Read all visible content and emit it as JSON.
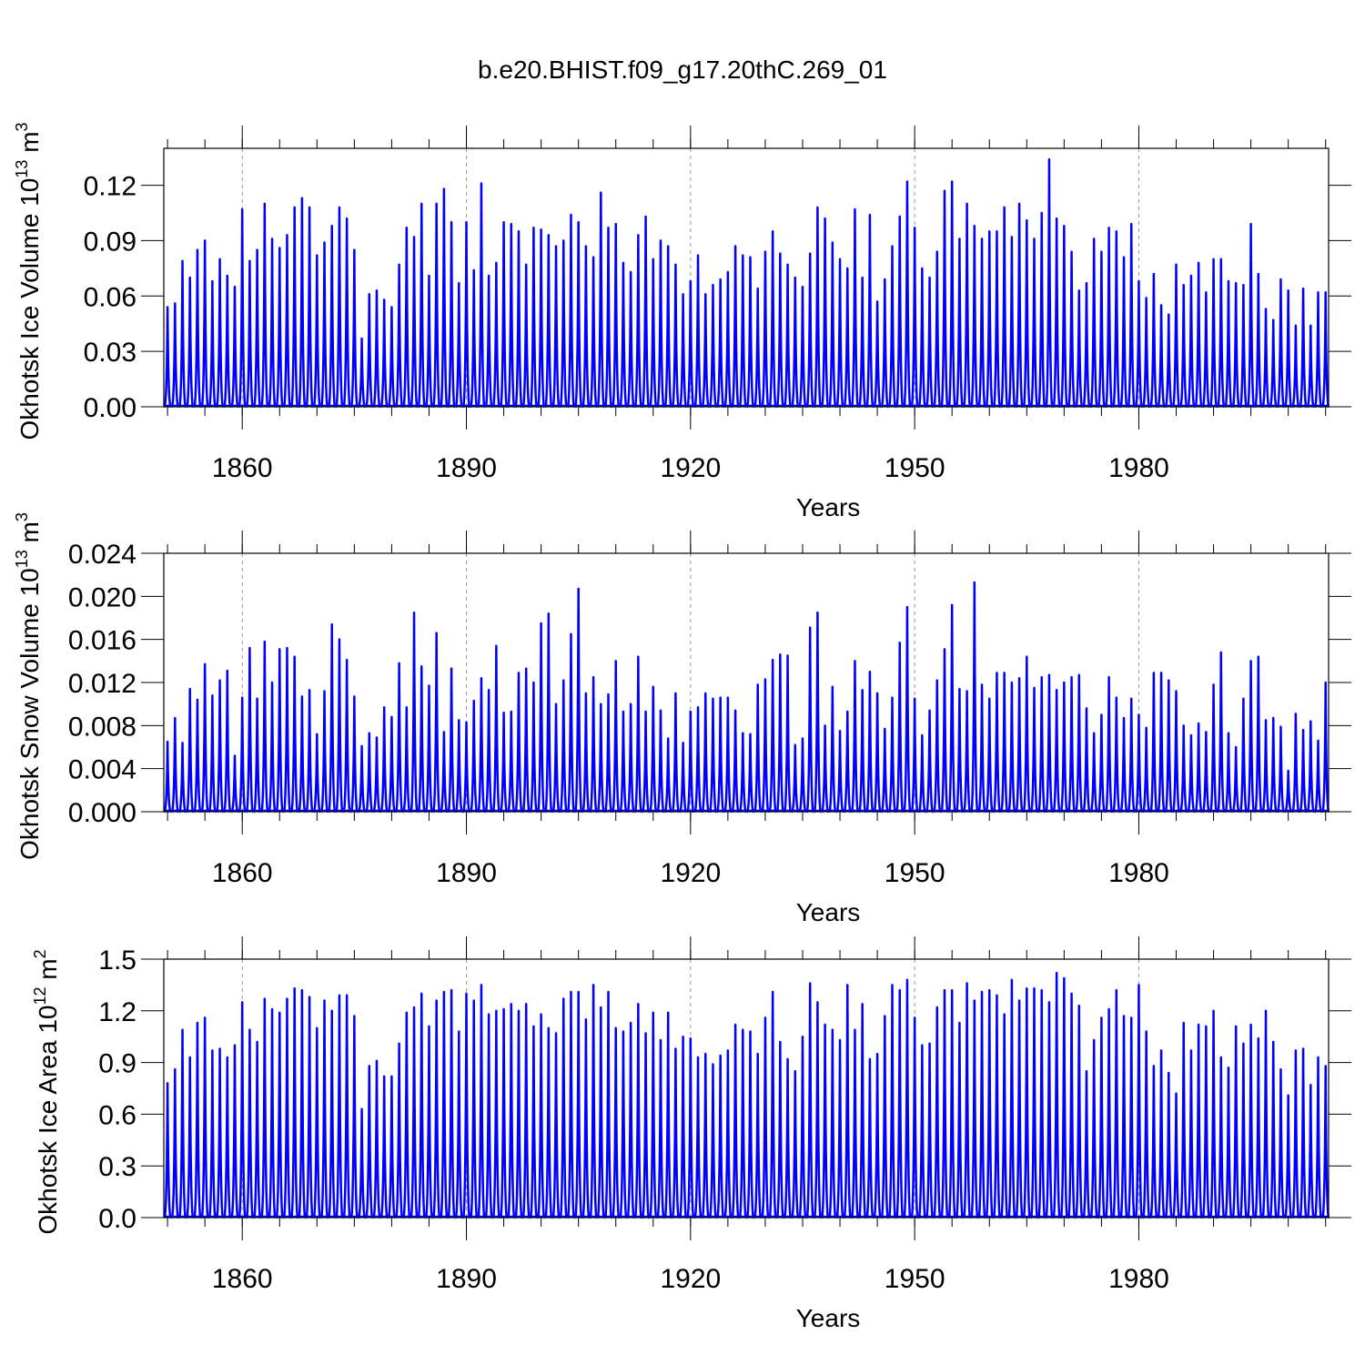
{
  "title": "b.e20.BHIST.f09_g17.20thC.269_01",
  "chart_data": [
    {
      "type": "spike",
      "ylabel": [
        "Okhotsk Ice Volume 10",
        "13",
        " m",
        "3"
      ],
      "xlabel": "Years",
      "color": "#0000ff",
      "grid": true,
      "xlim": [
        1849.5,
        2005.4
      ],
      "xticks": [
        1860,
        1890,
        1920,
        1950,
        1980
      ],
      "xminorticks": [
        1850,
        1855,
        1860,
        1865,
        1870,
        1875,
        1880,
        1885,
        1890,
        1895,
        1900,
        1905,
        1910,
        1915,
        1920,
        1925,
        1930,
        1935,
        1940,
        1945,
        1950,
        1955,
        1960,
        1965,
        1970,
        1975,
        1980,
        1985,
        1990,
        1995,
        2000,
        2005
      ],
      "ylim": [
        0,
        0.14
      ],
      "yticks": [
        {
          "value": 0,
          "label": "0.00"
        },
        0.03,
        0.06,
        0.09,
        0.12
      ],
      "x": [
        1850,
        1851,
        1852,
        1853,
        1854,
        1855,
        1856,
        1857,
        1858,
        1859,
        1860,
        1861,
        1862,
        1863,
        1864,
        1865,
        1866,
        1867,
        1868,
        1869,
        1870,
        1871,
        1872,
        1873,
        1874,
        1875,
        1876,
        1877,
        1878,
        1879,
        1880,
        1881,
        1882,
        1883,
        1884,
        1885,
        1886,
        1887,
        1888,
        1889,
        1890,
        1891,
        1892,
        1893,
        1894,
        1895,
        1896,
        1897,
        1898,
        1899,
        1900,
        1901,
        1902,
        1903,
        1904,
        1905,
        1906,
        1907,
        1908,
        1909,
        1910,
        1911,
        1912,
        1913,
        1914,
        1915,
        1916,
        1917,
        1918,
        1919,
        1920,
        1921,
        1922,
        1923,
        1924,
        1925,
        1926,
        1927,
        1928,
        1929,
        1930,
        1931,
        1932,
        1933,
        1934,
        1935,
        1936,
        1937,
        1938,
        1939,
        1940,
        1941,
        1942,
        1943,
        1944,
        1945,
        1946,
        1947,
        1948,
        1949,
        1950,
        1951,
        1952,
        1953,
        1954,
        1955,
        1956,
        1957,
        1958,
        1959,
        1960,
        1961,
        1962,
        1963,
        1964,
        1965,
        1966,
        1967,
        1968,
        1969,
        1970,
        1971,
        1972,
        1973,
        1974,
        1975,
        1976,
        1977,
        1978,
        1979,
        1980,
        1981,
        1982,
        1983,
        1984,
        1985,
        1986,
        1987,
        1988,
        1989,
        1990,
        1991,
        1992,
        1993,
        1994,
        1995,
        1996,
        1997,
        1998,
        1999,
        2000,
        2001,
        2002,
        2003,
        2004,
        2005
      ],
      "values": [
        0.054,
        0.056,
        0.079,
        0.07,
        0.085,
        0.09,
        0.068,
        0.08,
        0.071,
        0.065,
        0.107,
        0.079,
        0.085,
        0.11,
        0.091,
        0.086,
        0.093,
        0.108,
        0.113,
        0.108,
        0.082,
        0.089,
        0.098,
        0.108,
        0.102,
        0.085,
        0.037,
        0.061,
        0.063,
        0.058,
        0.054,
        0.077,
        0.097,
        0.092,
        0.11,
        0.071,
        0.11,
        0.118,
        0.1,
        0.067,
        0.1,
        0.074,
        0.121,
        0.071,
        0.078,
        0.1,
        0.099,
        0.095,
        0.077,
        0.097,
        0.096,
        0.093,
        0.087,
        0.09,
        0.104,
        0.1,
        0.087,
        0.081,
        0.116,
        0.097,
        0.099,
        0.078,
        0.073,
        0.093,
        0.103,
        0.08,
        0.09,
        0.087,
        0.077,
        0.061,
        0.068,
        0.082,
        0.061,
        0.066,
        0.069,
        0.073,
        0.087,
        0.082,
        0.081,
        0.064,
        0.084,
        0.095,
        0.083,
        0.077,
        0.07,
        0.065,
        0.083,
        0.108,
        0.102,
        0.089,
        0.08,
        0.075,
        0.107,
        0.07,
        0.104,
        0.057,
        0.069,
        0.087,
        0.103,
        0.122,
        0.097,
        0.075,
        0.07,
        0.084,
        0.117,
        0.122,
        0.091,
        0.11,
        0.098,
        0.091,
        0.095,
        0.095,
        0.108,
        0.092,
        0.11,
        0.101,
        0.091,
        0.105,
        0.134,
        0.102,
        0.098,
        0.084,
        0.063,
        0.067,
        0.091,
        0.084,
        0.097,
        0.095,
        0.081,
        0.099,
        0.068,
        0.059,
        0.072,
        0.055,
        0.05,
        0.077,
        0.066,
        0.071,
        0.078,
        0.062,
        0.08,
        0.08,
        0.068,
        0.067,
        0.066,
        0.099,
        0.072,
        0.053,
        0.047,
        0.069,
        0.063,
        0.044,
        0.064,
        0.044,
        0.062,
        0.062
      ]
    },
    {
      "type": "spike",
      "ylabel": [
        "Okhotsk Snow Volume 10",
        "13",
        " m",
        "3"
      ],
      "xlabel": "Years",
      "color": "#0000ff",
      "grid": true,
      "xlim": [
        1849.5,
        2005.4
      ],
      "xticks": [
        1860,
        1890,
        1920,
        1950,
        1980
      ],
      "xminorticks": [
        1850,
        1855,
        1860,
        1865,
        1870,
        1875,
        1880,
        1885,
        1890,
        1895,
        1900,
        1905,
        1910,
        1915,
        1920,
        1925,
        1930,
        1935,
        1940,
        1945,
        1950,
        1955,
        1960,
        1965,
        1970,
        1975,
        1980,
        1985,
        1990,
        1995,
        2000,
        2005
      ],
      "ylim": [
        0,
        0.024
      ],
      "yticks": [
        {
          "value": 0,
          "label": "0.000"
        },
        0.004,
        0.008,
        0.012,
        0.016,
        {
          "value": 0.02,
          "label": "0.020"
        },
        0.024
      ],
      "x": [
        1850,
        1851,
        1852,
        1853,
        1854,
        1855,
        1856,
        1857,
        1858,
        1859,
        1860,
        1861,
        1862,
        1863,
        1864,
        1865,
        1866,
        1867,
        1868,
        1869,
        1870,
        1871,
        1872,
        1873,
        1874,
        1875,
        1876,
        1877,
        1878,
        1879,
        1880,
        1881,
        1882,
        1883,
        1884,
        1885,
        1886,
        1887,
        1888,
        1889,
        1890,
        1891,
        1892,
        1893,
        1894,
        1895,
        1896,
        1897,
        1898,
        1899,
        1900,
        1901,
        1902,
        1903,
        1904,
        1905,
        1906,
        1907,
        1908,
        1909,
        1910,
        1911,
        1912,
        1913,
        1914,
        1915,
        1916,
        1917,
        1918,
        1919,
        1920,
        1921,
        1922,
        1923,
        1924,
        1925,
        1926,
        1927,
        1928,
        1929,
        1930,
        1931,
        1932,
        1933,
        1934,
        1935,
        1936,
        1937,
        1938,
        1939,
        1940,
        1941,
        1942,
        1943,
        1944,
        1945,
        1946,
        1947,
        1948,
        1949,
        1950,
        1951,
        1952,
        1953,
        1954,
        1955,
        1956,
        1957,
        1958,
        1959,
        1960,
        1961,
        1962,
        1963,
        1964,
        1965,
        1966,
        1967,
        1968,
        1969,
        1970,
        1971,
        1972,
        1973,
        1974,
        1975,
        1976,
        1977,
        1978,
        1979,
        1980,
        1981,
        1982,
        1983,
        1984,
        1985,
        1986,
        1987,
        1988,
        1989,
        1990,
        1991,
        1992,
        1993,
        1994,
        1995,
        1996,
        1997,
        1998,
        1999,
        2000,
        2001,
        2002,
        2003,
        2004,
        2005
      ],
      "values": [
        0.0065,
        0.0087,
        0.0064,
        0.0114,
        0.0104,
        0.0137,
        0.0108,
        0.0122,
        0.0131,
        0.0052,
        0.0106,
        0.0152,
        0.0105,
        0.0158,
        0.012,
        0.0151,
        0.0152,
        0.0144,
        0.0107,
        0.0113,
        0.0072,
        0.0112,
        0.0174,
        0.016,
        0.0141,
        0.0107,
        0.0061,
        0.0073,
        0.0069,
        0.0097,
        0.0088,
        0.0138,
        0.0097,
        0.0185,
        0.0135,
        0.0117,
        0.0166,
        0.0074,
        0.0133,
        0.0085,
        0.0083,
        0.0103,
        0.0124,
        0.0113,
        0.0154,
        0.0092,
        0.0093,
        0.0129,
        0.0133,
        0.012,
        0.0175,
        0.0184,
        0.01,
        0.0122,
        0.0165,
        0.0207,
        0.011,
        0.0125,
        0.01,
        0.0109,
        0.014,
        0.0093,
        0.01,
        0.0144,
        0.0093,
        0.0116,
        0.0094,
        0.0068,
        0.011,
        0.0064,
        0.0093,
        0.0097,
        0.011,
        0.0105,
        0.0106,
        0.0106,
        0.0094,
        0.0073,
        0.0072,
        0.0118,
        0.0123,
        0.0141,
        0.0146,
        0.0145,
        0.0062,
        0.0068,
        0.0171,
        0.0185,
        0.008,
        0.0116,
        0.0075,
        0.0093,
        0.014,
        0.0113,
        0.013,
        0.011,
        0.0077,
        0.0106,
        0.0157,
        0.019,
        0.0105,
        0.0071,
        0.0094,
        0.0122,
        0.0151,
        0.0192,
        0.0114,
        0.0112,
        0.0213,
        0.0118,
        0.0105,
        0.0129,
        0.0129,
        0.012,
        0.0124,
        0.0144,
        0.0115,
        0.0125,
        0.0127,
        0.0113,
        0.012,
        0.0125,
        0.0127,
        0.0096,
        0.0073,
        0.009,
        0.0125,
        0.0106,
        0.0087,
        0.0105,
        0.009,
        0.0078,
        0.0129,
        0.0129,
        0.0122,
        0.0112,
        0.008,
        0.0071,
        0.0082,
        0.0074,
        0.0118,
        0.0148,
        0.0073,
        0.006,
        0.0105,
        0.014,
        0.0144,
        0.0085,
        0.0087,
        0.0079,
        0.0038,
        0.0091,
        0.0076,
        0.0084,
        0.0066,
        0.012
      ]
    },
    {
      "type": "spike",
      "ylabel": [
        "Okhotsk Ice Area 10",
        "12",
        " m",
        "2"
      ],
      "xlabel": "Years",
      "color": "#0000ff",
      "grid": true,
      "xlim": [
        1849.5,
        2005.4
      ],
      "xticks": [
        1860,
        1890,
        1920,
        1950,
        1980
      ],
      "xminorticks": [
        1850,
        1855,
        1860,
        1865,
        1870,
        1875,
        1880,
        1885,
        1890,
        1895,
        1900,
        1905,
        1910,
        1915,
        1920,
        1925,
        1930,
        1935,
        1940,
        1945,
        1950,
        1955,
        1960,
        1965,
        1970,
        1975,
        1980,
        1985,
        1990,
        1995,
        2000,
        2005
      ],
      "ylim": [
        0,
        1.5
      ],
      "yticks": [
        {
          "value": 0,
          "label": "0.0"
        },
        0.3,
        0.6,
        0.9,
        1.2,
        1.5
      ],
      "x": [
        1850,
        1851,
        1852,
        1853,
        1854,
        1855,
        1856,
        1857,
        1858,
        1859,
        1860,
        1861,
        1862,
        1863,
        1864,
        1865,
        1866,
        1867,
        1868,
        1869,
        1870,
        1871,
        1872,
        1873,
        1874,
        1875,
        1876,
        1877,
        1878,
        1879,
        1880,
        1881,
        1882,
        1883,
        1884,
        1885,
        1886,
        1887,
        1888,
        1889,
        1890,
        1891,
        1892,
        1893,
        1894,
        1895,
        1896,
        1897,
        1898,
        1899,
        1900,
        1901,
        1902,
        1903,
        1904,
        1905,
        1906,
        1907,
        1908,
        1909,
        1910,
        1911,
        1912,
        1913,
        1914,
        1915,
        1916,
        1917,
        1918,
        1919,
        1920,
        1921,
        1922,
        1923,
        1924,
        1925,
        1926,
        1927,
        1928,
        1929,
        1930,
        1931,
        1932,
        1933,
        1934,
        1935,
        1936,
        1937,
        1938,
        1939,
        1940,
        1941,
        1942,
        1943,
        1944,
        1945,
        1946,
        1947,
        1948,
        1949,
        1950,
        1951,
        1952,
        1953,
        1954,
        1955,
        1956,
        1957,
        1958,
        1959,
        1960,
        1961,
        1962,
        1963,
        1964,
        1965,
        1966,
        1967,
        1968,
        1969,
        1970,
        1971,
        1972,
        1973,
        1974,
        1975,
        1976,
        1977,
        1978,
        1979,
        1980,
        1981,
        1982,
        1983,
        1984,
        1985,
        1986,
        1987,
        1988,
        1989,
        1990,
        1991,
        1992,
        1993,
        1994,
        1995,
        1996,
        1997,
        1998,
        1999,
        2000,
        2001,
        2002,
        2003,
        2004,
        2005
      ],
      "values": [
        0.78,
        0.86,
        1.09,
        0.93,
        1.13,
        1.16,
        0.97,
        0.98,
        0.93,
        1.0,
        1.25,
        1.09,
        1.02,
        1.27,
        1.21,
        1.19,
        1.27,
        1.33,
        1.32,
        1.28,
        1.1,
        1.26,
        1.2,
        1.29,
        1.29,
        1.17,
        0.63,
        0.88,
        0.91,
        0.82,
        0.82,
        1.01,
        1.19,
        1.22,
        1.3,
        1.11,
        1.26,
        1.31,
        1.32,
        1.08,
        1.3,
        1.26,
        1.35,
        1.18,
        1.2,
        1.21,
        1.24,
        1.2,
        1.24,
        1.11,
        1.18,
        1.1,
        1.07,
        1.27,
        1.31,
        1.31,
        1.15,
        1.35,
        1.22,
        1.31,
        1.1,
        1.08,
        1.13,
        1.24,
        1.07,
        1.19,
        1.03,
        1.19,
        0.98,
        1.05,
        1.04,
        0.93,
        0.95,
        0.89,
        0.94,
        0.97,
        1.12,
        1.09,
        1.08,
        0.95,
        1.16,
        1.31,
        1.02,
        0.92,
        0.85,
        1.05,
        1.36,
        1.25,
        1.12,
        1.09,
        1.03,
        1.35,
        1.09,
        1.24,
        0.92,
        0.95,
        1.17,
        1.35,
        1.32,
        1.38,
        1.16,
        1.0,
        1.01,
        1.22,
        1.32,
        1.32,
        1.13,
        1.36,
        1.26,
        1.31,
        1.32,
        1.29,
        1.18,
        1.38,
        1.26,
        1.33,
        1.33,
        1.32,
        1.25,
        1.42,
        1.39,
        1.3,
        1.23,
        0.85,
        1.03,
        1.16,
        1.21,
        1.32,
        1.17,
        1.16,
        1.35,
        1.08,
        0.88,
        0.97,
        0.84,
        0.72,
        1.13,
        0.97,
        1.12,
        1.11,
        1.2,
        0.93,
        0.87,
        1.11,
        1.01,
        1.12,
        1.04,
        1.2,
        1.02,
        0.86,
        0.71,
        0.97,
        0.98,
        0.77,
        0.93,
        0.88
      ]
    }
  ]
}
